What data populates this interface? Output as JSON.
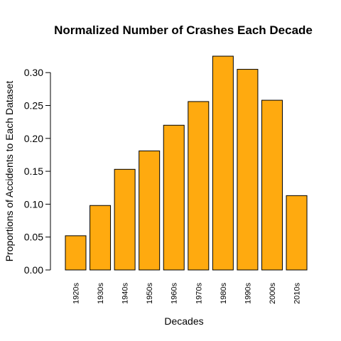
{
  "chart_data": {
    "type": "bar",
    "title": "Normalized Number of Crashes Each Decade",
    "xlabel": "Decades",
    "ylabel": "Proportions of Accidents to Each Dataset",
    "categories": [
      "1920s",
      "1930s",
      "1940s",
      "1950s",
      "1960s",
      "1970s",
      "1980s",
      "1990s",
      "2000s",
      "2010s"
    ],
    "values": [
      0.052,
      0.098,
      0.153,
      0.181,
      0.22,
      0.256,
      0.325,
      0.305,
      0.258,
      0.113
    ],
    "ylim": [
      0,
      0.325
    ],
    "yticks": [
      0,
      0.05,
      0.1,
      0.15,
      0.2,
      0.25,
      0.3
    ],
    "ytick_labels": [
      "0.00",
      "0.05",
      "0.10",
      "0.15",
      "0.20",
      "0.25",
      "0.30"
    ],
    "bar_color": "#FFAA0F",
    "edge_color": "#000000",
    "grid": false
  }
}
